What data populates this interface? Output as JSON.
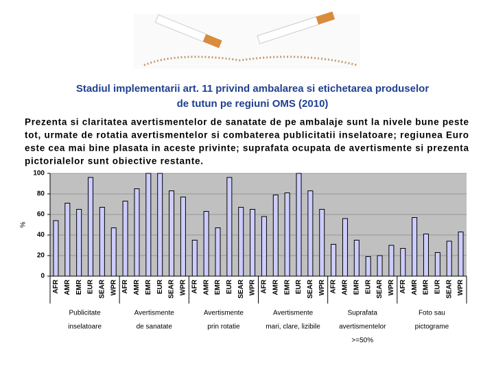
{
  "chart_data": {
    "type": "bar",
    "title": [
      "Stadiul implementarii art. 11 privind ambalarea si etichetarea produselor",
      "de tutun pe regiuni OMS (2010)"
    ],
    "subtitle": [
      "Prezenta si claritatea avertismentelor de sanatate de pe ambalaje sunt la nivele bune peste",
      "tot, urmate de rotatia avertismentelor si combaterea publicitatii inselatoare; regiunea Euro",
      "este cea mai bine plasata in aceste privinte; suprafata ocupata de avertismente si prezenta",
      "pictorialelor sunt obiective restante."
    ],
    "ylabel": "%",
    "groups": [
      [
        "Publicitate",
        "inselatoare"
      ],
      [
        "Avertismente",
        "de sanatate"
      ],
      [
        "Avertismente",
        "prin rotatie"
      ],
      [
        "Avertismente",
        "mari, clare, lizibile"
      ],
      [
        "Suprafata",
        "avertismentelor",
        ">=50%"
      ],
      [
        "Foto sau",
        "pictograme"
      ]
    ],
    "categories": [
      "AFR",
      "AMR",
      "EMR",
      "EUR",
      "SEAR",
      "WPR",
      "AFR",
      "AMR",
      "EMR",
      "EUR",
      "SEAR",
      "WPR",
      "AFR",
      "AMR",
      "EMR",
      "EUR",
      "SEAR",
      "WPR",
      "AFR",
      "AMR",
      "EMR",
      "EUR",
      "SEAR",
      "WPR",
      "AFR",
      "AMR",
      "EMR",
      "EUR",
      "SEAR",
      "WPR",
      "AFR",
      "AMR",
      "EMR",
      "EUR",
      "SEAR",
      "WPR"
    ],
    "values": [
      54,
      71,
      65,
      96,
      67,
      47,
      73,
      85,
      100,
      100,
      83,
      77,
      35,
      63,
      47,
      96,
      67,
      65,
      58,
      79,
      81,
      100,
      83,
      65,
      31,
      56,
      35,
      19,
      20,
      30,
      27,
      57,
      41,
      23,
      34,
      43
    ],
    "color": "#ccccff",
    "ylim": [
      0,
      100
    ],
    "yticks": [
      0,
      20,
      40,
      60,
      80,
      100
    ],
    "grid": true
  }
}
